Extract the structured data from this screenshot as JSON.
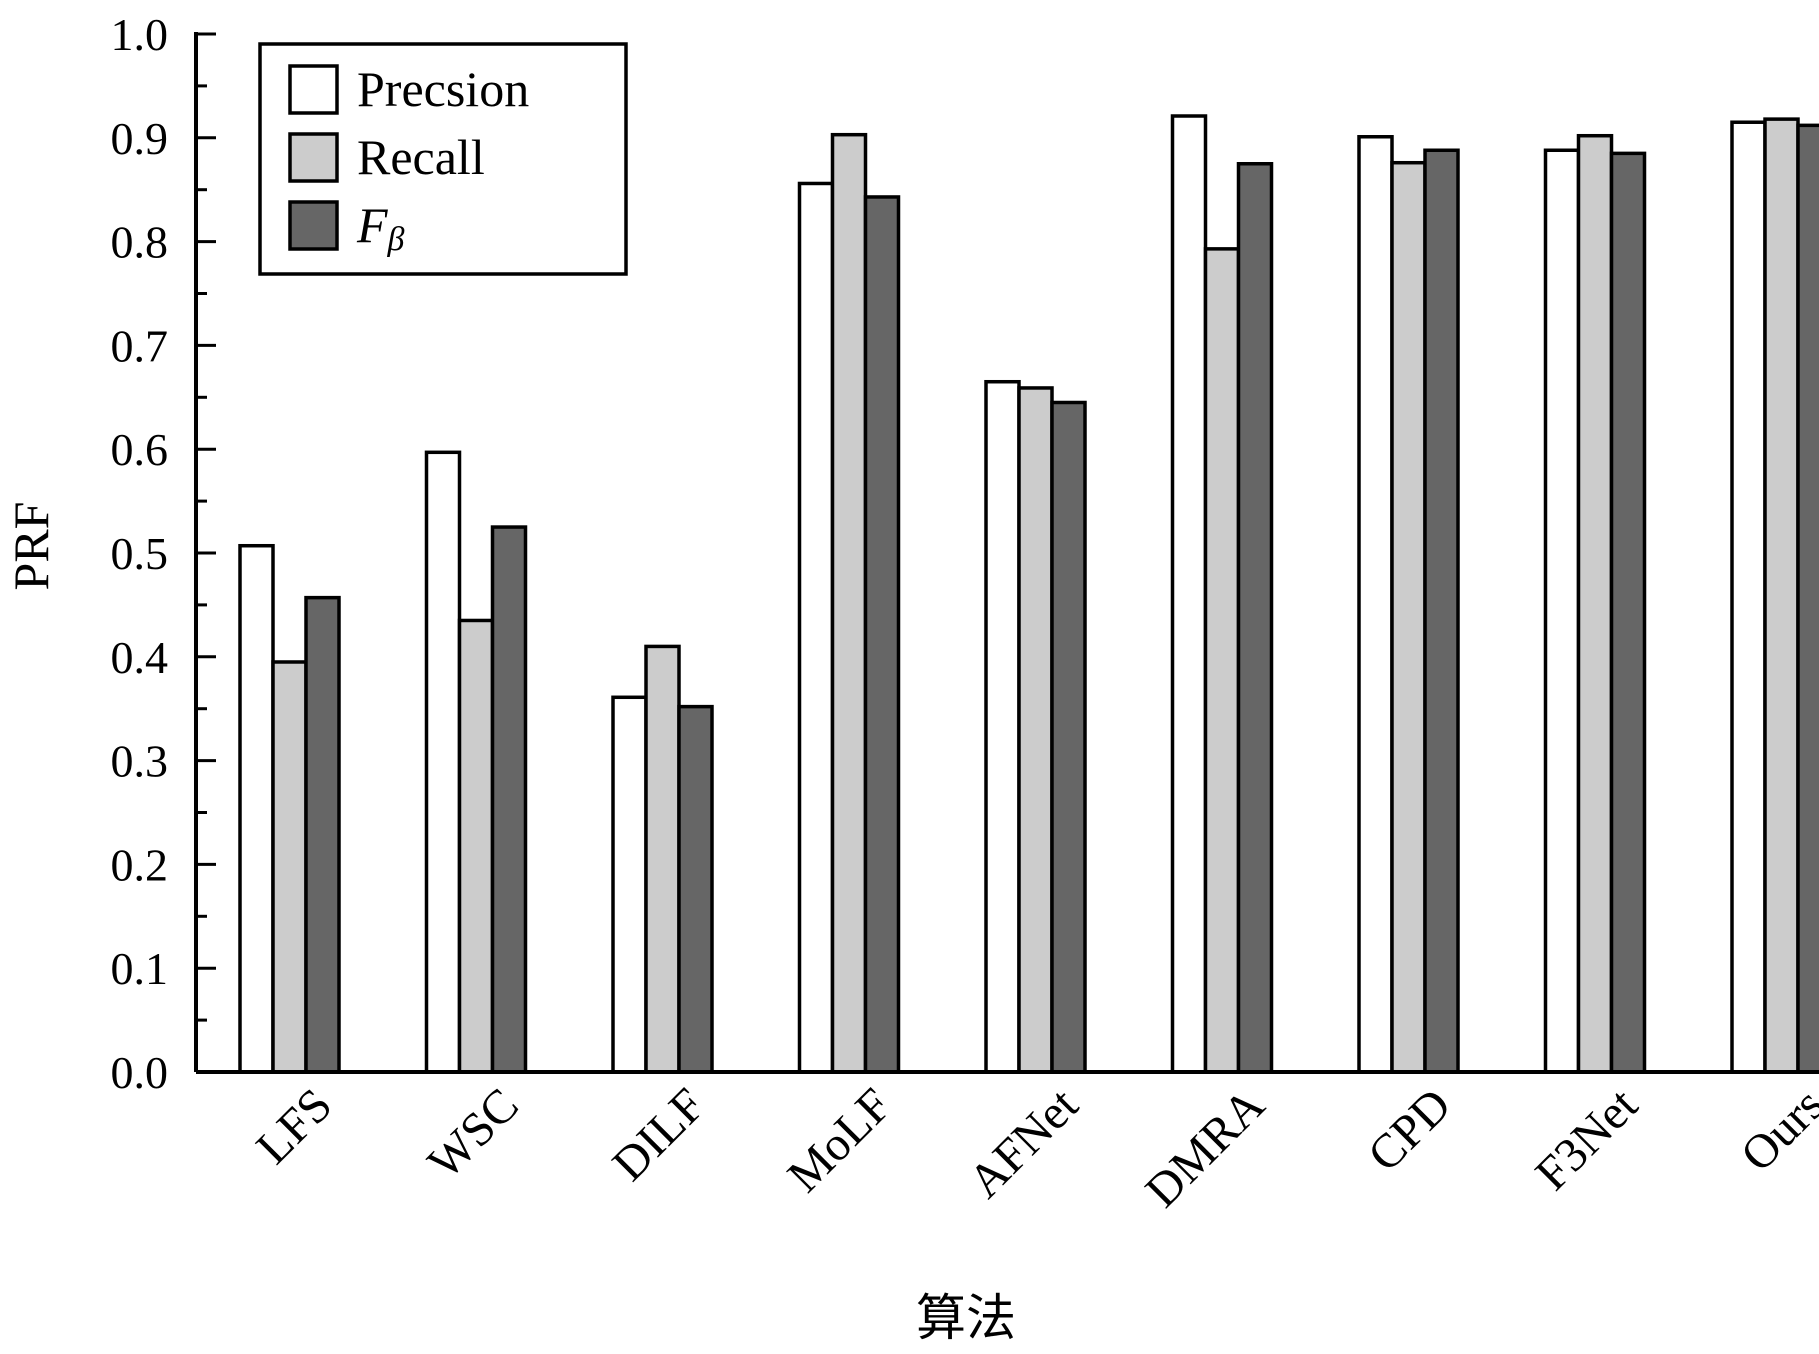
{
  "chart_data": {
    "type": "bar",
    "categories": [
      "LFS",
      "WSC",
      "DILF",
      "MoLF",
      "AFNet",
      "DMRA",
      "CPD",
      "F3Net",
      "Ours"
    ],
    "series": [
      {
        "name": "Precsion",
        "color": "#ffffff",
        "values": [
          0.507,
          0.597,
          0.361,
          0.856,
          0.665,
          0.921,
          0.901,
          0.888,
          0.915
        ]
      },
      {
        "name": "Recall",
        "color": "#cccccc",
        "values": [
          0.395,
          0.435,
          0.41,
          0.903,
          0.659,
          0.793,
          0.876,
          0.902,
          0.918
        ]
      },
      {
        "name": "Fβ",
        "name_main": "F",
        "name_sub": "β",
        "color": "#666666",
        "values": [
          0.457,
          0.525,
          0.352,
          0.843,
          0.645,
          0.875,
          0.888,
          0.885,
          0.912
        ]
      }
    ],
    "ylim": [
      0.0,
      1.0
    ],
    "yticks": [
      "0.0",
      "0.1",
      "0.2",
      "0.3",
      "0.4",
      "0.5",
      "0.6",
      "0.7",
      "0.8",
      "0.9",
      "1.0"
    ],
    "xlabel": "算法",
    "ylabel": "PRF",
    "legend_position": "top-left",
    "grid": false
  }
}
